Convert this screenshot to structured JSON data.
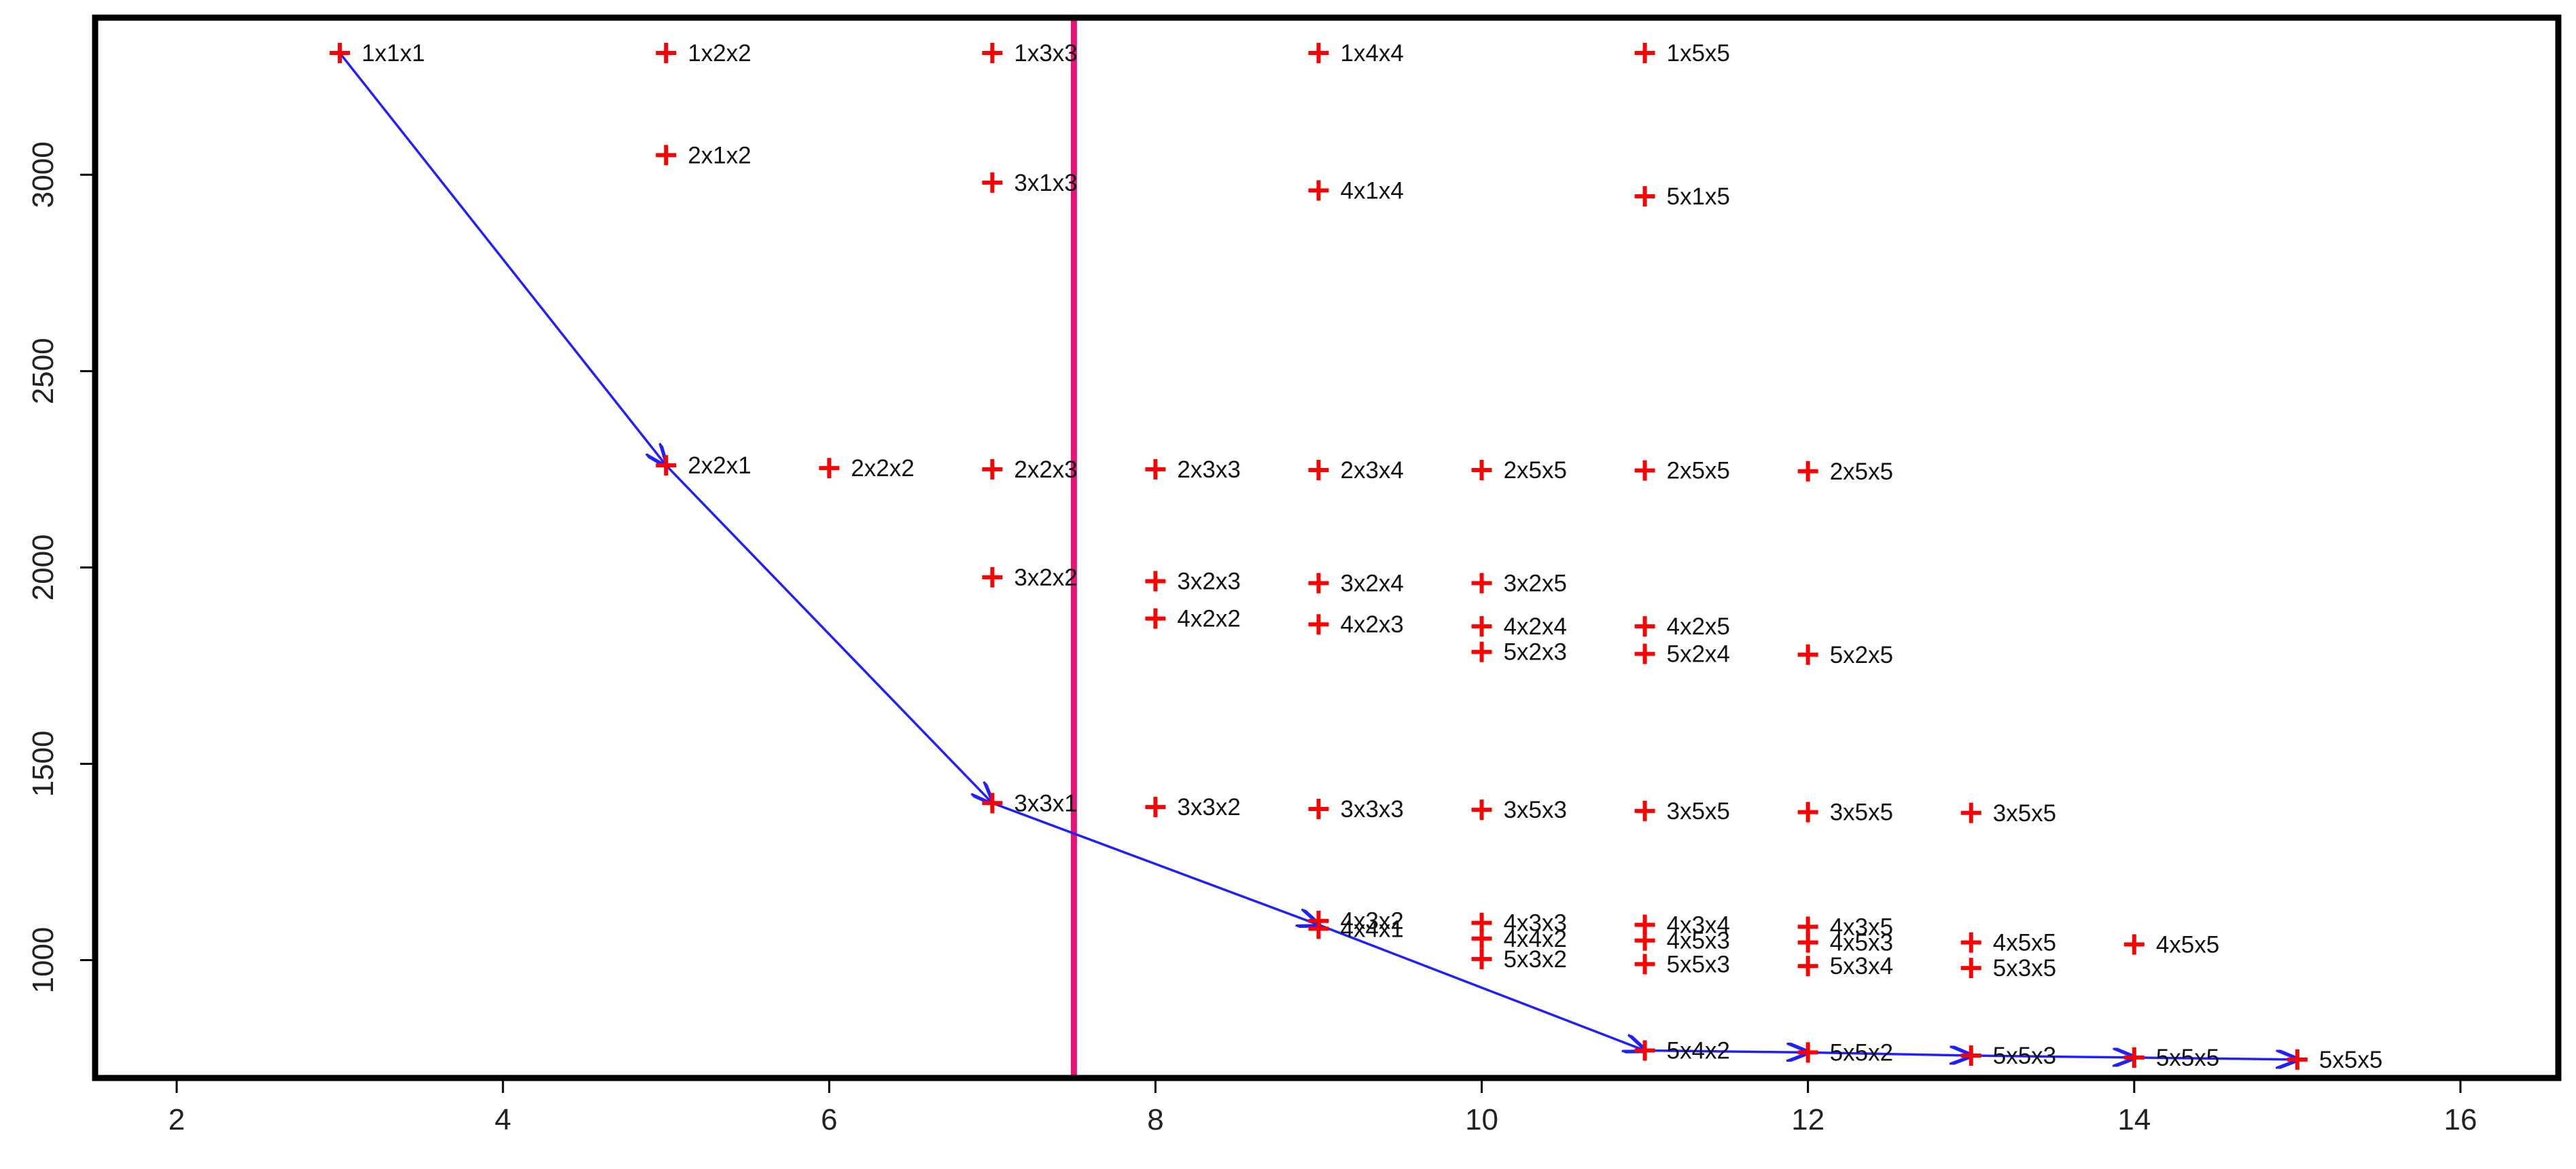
{
  "chart_data": {
    "type": "scatter",
    "title": "",
    "xlabel": "",
    "ylabel": "",
    "xlim": [
      1.5,
      16.6
    ],
    "ylim": [
      700,
      3400
    ],
    "x_ticks": [
      2,
      4,
      6,
      8,
      10,
      12,
      14,
      16
    ],
    "y_ticks": [
      1000,
      1500,
      2000,
      2500,
      3000
    ],
    "grid": false,
    "marker": "plus",
    "colors": {
      "points": "#ff0000",
      "path": "#2020ff",
      "threshold": "#e8147a",
      "frame": "#000000",
      "text": "#111111"
    },
    "threshold_x": 7.5,
    "points": [
      {
        "label": "1x1x1",
        "x": 3,
        "y": 3310
      },
      {
        "label": "1x2x2",
        "x": 5,
        "y": 3310
      },
      {
        "label": "1x3x3",
        "x": 7,
        "y": 3310
      },
      {
        "label": "1x4x4",
        "x": 9,
        "y": 3310
      },
      {
        "label": "1x5x5",
        "x": 11,
        "y": 3310
      },
      {
        "label": "2x1x2",
        "x": 5,
        "y": 3050
      },
      {
        "label": "3x1x3",
        "x": 7,
        "y": 2980
      },
      {
        "label": "4x1x4",
        "x": 9,
        "y": 2960
      },
      {
        "label": "5x1x5",
        "x": 11,
        "y": 2945
      },
      {
        "label": "2x2x1",
        "x": 5,
        "y": 2260
      },
      {
        "label": "2x2x2",
        "x": 6,
        "y": 2253
      },
      {
        "label": "2x2x3",
        "x": 7,
        "y": 2250
      },
      {
        "label": "2x3x3",
        "x": 8,
        "y": 2250
      },
      {
        "label": "2x3x4",
        "x": 9,
        "y": 2248
      },
      {
        "label": "2x5x5",
        "x": 10,
        "y": 2248
      },
      {
        "label": "2x5x5",
        "x": 11,
        "y": 2247
      },
      {
        "label": "2x5x5",
        "x": 12,
        "y": 2245
      },
      {
        "label": "3x2x2",
        "x": 7,
        "y": 1975
      },
      {
        "label": "3x2x3",
        "x": 8,
        "y": 1965
      },
      {
        "label": "3x2x4",
        "x": 9,
        "y": 1960
      },
      {
        "label": "3x2x5",
        "x": 10,
        "y": 1960
      },
      {
        "label": "4x2x2",
        "x": 8,
        "y": 1870
      },
      {
        "label": "4x2x3",
        "x": 9,
        "y": 1855
      },
      {
        "label": "4x2x4",
        "x": 10,
        "y": 1850
      },
      {
        "label": "4x2x5",
        "x": 11,
        "y": 1850
      },
      {
        "label": "5x2x3",
        "x": 10,
        "y": 1785
      },
      {
        "label": "5x2x4",
        "x": 11,
        "y": 1780
      },
      {
        "label": "5x2x5",
        "x": 12,
        "y": 1778
      },
      {
        "label": "3x3x1",
        "x": 7,
        "y": 1400
      },
      {
        "label": "3x3x2",
        "x": 8,
        "y": 1390
      },
      {
        "label": "3x3x3",
        "x": 9,
        "y": 1385
      },
      {
        "label": "3x5x3",
        "x": 10,
        "y": 1383
      },
      {
        "label": "3x5x5",
        "x": 11,
        "y": 1380
      },
      {
        "label": "3x5x5",
        "x": 12,
        "y": 1377
      },
      {
        "label": "3x5x5",
        "x": 13,
        "y": 1375
      },
      {
        "label": "4x3x2",
        "x": 9,
        "y": 1100
      },
      {
        "label": "4x4x1",
        "x": 9,
        "y": 1080
      },
      {
        "label": "4x3x3",
        "x": 10,
        "y": 1095
      },
      {
        "label": "4x4x2",
        "x": 10,
        "y": 1055
      },
      {
        "label": "5x3x2",
        "x": 10,
        "y": 1003
      },
      {
        "label": "4x3x4",
        "x": 11,
        "y": 1090
      },
      {
        "label": "4x5x3",
        "x": 11,
        "y": 1050
      },
      {
        "label": "5x5x3",
        "x": 11,
        "y": 990
      },
      {
        "label": "4x3x5",
        "x": 12,
        "y": 1085
      },
      {
        "label": "4x5x3",
        "x": 12,
        "y": 1045
      },
      {
        "label": "5x3x4",
        "x": 12,
        "y": 985
      },
      {
        "label": "4x5x5",
        "x": 13,
        "y": 1045
      },
      {
        "label": "5x3x5",
        "x": 13,
        "y": 980
      },
      {
        "label": "4x5x5",
        "x": 14,
        "y": 1040
      },
      {
        "label": "5x4x2",
        "x": 11,
        "y": 770
      },
      {
        "label": "5x5x2",
        "x": 12,
        "y": 765
      },
      {
        "label": "5x5x3",
        "x": 13,
        "y": 757
      },
      {
        "label": "5x5x5",
        "x": 14,
        "y": 752
      },
      {
        "label": "5x5x5",
        "x": 15,
        "y": 747
      }
    ],
    "path": [
      {
        "x": 3,
        "y": 3310
      },
      {
        "x": 5,
        "y": 2260
      },
      {
        "x": 7,
        "y": 1400
      },
      {
        "x": 9,
        "y": 1090
      },
      {
        "x": 11,
        "y": 770
      },
      {
        "x": 12,
        "y": 765
      },
      {
        "x": 13,
        "y": 757
      },
      {
        "x": 14,
        "y": 752
      },
      {
        "x": 15,
        "y": 747
      }
    ]
  }
}
